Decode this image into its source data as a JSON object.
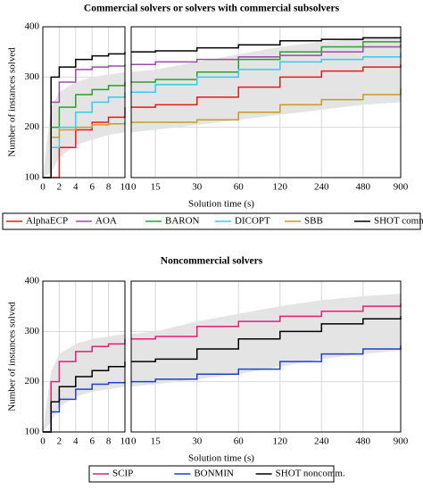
{
  "chart_data": [
    {
      "type": "line",
      "title": "Commercial solvers or solvers with commercial subsolvers",
      "ylabel": "Number of instances solved",
      "xlabel": "Solution time (s)",
      "x": [
        0,
        1,
        2,
        4,
        6,
        8,
        10,
        15,
        30,
        60,
        120,
        240,
        480,
        900
      ],
      "xlim": [
        0,
        10
      ],
      "xticks": [
        0,
        2,
        4,
        6,
        8,
        10
      ],
      "x2lim": [
        10,
        900
      ],
      "x2ticks": [
        10,
        15,
        30,
        60,
        120,
        240,
        480,
        900
      ],
      "x2scale": "log",
      "ylim": [
        100,
        400
      ],
      "yticks": [
        100,
        200,
        300,
        400
      ],
      "grid": true,
      "band": {
        "color": "#e4e4e4",
        "lower": [
          100,
          110,
          140,
          165,
          175,
          185,
          190,
          195,
          205,
          215,
          225,
          235,
          245,
          250
        ],
        "upper": [
          100,
          240,
          270,
          290,
          300,
          305,
          310,
          315,
          330,
          345,
          360,
          370,
          376,
          380
        ]
      },
      "series": [
        {
          "name": "AlphaECP",
          "color": "#e41a1c",
          "values": [
            null,
            100,
            160,
            195,
            210,
            220,
            240,
            245,
            260,
            280,
            300,
            312,
            320,
            325
          ]
        },
        {
          "name": "AOA",
          "color": "#984ea3",
          "values": [
            100,
            250,
            290,
            315,
            320,
            322,
            325,
            330,
            335,
            340,
            343,
            350,
            360,
            365
          ]
        },
        {
          "name": "BARON",
          "color": "#2ca02c",
          "values": [
            100,
            200,
            240,
            265,
            275,
            283,
            290,
            295,
            310,
            335,
            350,
            360,
            370,
            375
          ]
        },
        {
          "name": "DICOPT",
          "color": "#33ccee",
          "values": [
            100,
            160,
            200,
            230,
            250,
            260,
            270,
            285,
            300,
            315,
            330,
            335,
            340,
            348
          ]
        },
        {
          "name": "SBB",
          "color": "#cc9922",
          "values": [
            100,
            180,
            195,
            200,
            205,
            207,
            210,
            210,
            215,
            230,
            245,
            255,
            265,
            278
          ]
        },
        {
          "name": "SHOT comm.",
          "color": "#000000",
          "values": [
            100,
            300,
            320,
            335,
            342,
            346,
            350,
            352,
            358,
            364,
            372,
            375,
            378,
            380
          ]
        }
      ]
    },
    {
      "type": "line",
      "title": "Noncommercial solvers",
      "ylabel": "Number of instances solved",
      "xlabel": "Solution time (s)",
      "x": [
        0,
        1,
        2,
        4,
        6,
        8,
        10,
        15,
        30,
        60,
        120,
        240,
        480,
        900
      ],
      "xlim": [
        0,
        10
      ],
      "xticks": [
        0,
        2,
        4,
        6,
        8,
        10
      ],
      "x2lim": [
        10,
        900
      ],
      "x2ticks": [
        10,
        15,
        30,
        60,
        120,
        240,
        480,
        900
      ],
      "x2scale": "log",
      "ylim": [
        100,
        400
      ],
      "yticks": [
        100,
        200,
        300,
        400
      ],
      "grid": true,
      "band": {
        "color": "#e4e4e4",
        "lower": [
          100,
          120,
          150,
          170,
          180,
          185,
          190,
          195,
          205,
          215,
          230,
          245,
          255,
          262
        ],
        "upper": [
          100,
          220,
          255,
          275,
          285,
          290,
          295,
          300,
          320,
          335,
          350,
          362,
          370,
          375
        ]
      },
      "series": [
        {
          "name": "SCIP",
          "color": "#e0207a",
          "values": [
            100,
            200,
            240,
            260,
            270,
            275,
            285,
            290,
            310,
            320,
            330,
            340,
            350,
            355
          ]
        },
        {
          "name": "BONMIN",
          "color": "#1f3fd0",
          "values": [
            100,
            140,
            165,
            185,
            195,
            198,
            200,
            205,
            215,
            225,
            240,
            255,
            265,
            272
          ]
        },
        {
          "name": "SHOT noncomm.",
          "color": "#000000",
          "values": [
            100,
            160,
            190,
            210,
            222,
            230,
            240,
            245,
            265,
            285,
            300,
            315,
            325,
            330
          ]
        }
      ]
    }
  ]
}
